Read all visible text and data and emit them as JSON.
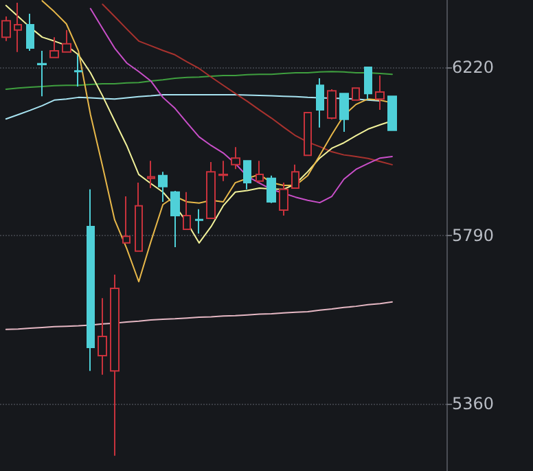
{
  "chart_data": {
    "type": "candlestick",
    "categories": [
      null,
      null,
      null,
      null,
      null,
      null,
      null,
      null,
      null,
      null,
      null,
      null,
      null,
      null,
      null,
      null,
      null,
      null,
      null,
      null,
      null,
      null,
      null,
      null,
      null,
      null,
      null,
      null,
      null,
      null,
      null,
      null,
      null,
      null,
      null,
      null,
      null
    ],
    "ohlc": [
      [
        6297,
        6350,
        6287,
        6339
      ],
      [
        6315,
        6385,
        6259,
        6329
      ],
      [
        6329,
        6357,
        6262,
        6269
      ],
      [
        6229,
        6262,
        6146,
        6227
      ],
      [
        6245,
        6297,
        6245,
        6262
      ],
      [
        6259,
        6315,
        6259,
        6280
      ],
      [
        6211,
        6252,
        6171,
        6209
      ],
      [
        5813,
        5908,
        5444,
        5504
      ],
      [
        5483,
        5630,
        5434,
        5532
      ],
      [
        5444,
        5690,
        5227,
        5655
      ],
      [
        5771,
        5890,
        5771,
        5788
      ],
      [
        5750,
        5925,
        5750,
        5866
      ],
      [
        5936,
        5981,
        5911,
        5940
      ],
      [
        5943,
        5953,
        5876,
        5915
      ],
      [
        5901,
        5904,
        5760,
        5841
      ],
      [
        5806,
        5901,
        5806,
        5841
      ],
      [
        5831,
        5857,
        5795,
        5829
      ],
      [
        5834,
        5978,
        5834,
        5953
      ],
      [
        5944,
        5981,
        5929,
        5946
      ],
      [
        5971,
        6016,
        5960,
        5988
      ],
      [
        5981,
        5981,
        5908,
        5925
      ],
      [
        5929,
        5981,
        5925,
        5946
      ],
      [
        5936,
        5943,
        5873,
        5876
      ],
      [
        5855,
        5925,
        5841,
        5908
      ],
      [
        5911,
        5971,
        5911,
        5953
      ],
      [
        5995,
        6104,
        5995,
        6104
      ],
      [
        6174,
        6192,
        6066,
        6111
      ],
      [
        6090,
        6164,
        6087,
        6160
      ],
      [
        6153,
        6153,
        6055,
        6087
      ],
      [
        6136,
        6167,
        6136,
        6167
      ],
      [
        6220,
        6220,
        6139,
        6153
      ],
      [
        6139,
        6199,
        6111,
        6157
      ],
      [
        6146,
        6146,
        6059,
        6059
      ],
      null,
      null,
      null,
      null
    ],
    "colors": [
      "#c8323c",
      "#c8323c",
      "#4fd0d8",
      "#4fd0d8",
      "#c8323c",
      "#c8323c",
      "#4fd0d8",
      "#4fd0d8",
      "#c8323c",
      "#c8323c",
      "#c8323c",
      "#c8323c",
      "#c8323c",
      "#4fd0d8",
      "#4fd0d8",
      "#c8323c",
      "#4fd0d8",
      "#c8323c",
      "#c8323c",
      "#c8323c",
      "#4fd0d8",
      "#c8323c",
      "#4fd0d8",
      "#c8323c",
      "#c8323c",
      "#c8323c",
      "#4fd0d8",
      "#c8323c",
      "#4fd0d8",
      "#c8323c",
      "#4fd0d8",
      "#c8323c",
      "#4fd0d8",
      null,
      null,
      null,
      null
    ],
    "series": [
      {
        "type": "line",
        "color": "#e8b84a",
        "values": [
          null,
          null,
          null,
          6390,
          6362,
          6331,
          6262,
          6099,
          5967,
          5830,
          5757,
          5672,
          5774,
          5869,
          5890,
          5876,
          5873,
          5880,
          5876,
          5925,
          5936,
          5946,
          5925,
          5918,
          5918,
          5943,
          5995,
          6048,
          6097,
          6125,
          6139,
          6136,
          6129,
          null,
          null,
          null,
          null
        ]
      },
      {
        "type": "line",
        "color": "#f2f29a",
        "values": [
          6378,
          6350,
          6322,
          6297,
          6287,
          6276,
          6252,
          6206,
          6147,
          6083,
          6020,
          5946,
          5923,
          5901,
          5866,
          5823,
          5771,
          5813,
          5866,
          5901,
          5905,
          5911,
          5909,
          5908,
          5922,
          5953,
          5988,
          6013,
          6027,
          6045,
          6062,
          6073,
          6083,
          null,
          null,
          null,
          null
        ]
      },
      {
        "type": "line",
        "color": "#c94fc9",
        "values": [
          null,
          null,
          null,
          null,
          null,
          null,
          null,
          6370,
          6319,
          6269,
          6231,
          6209,
          6185,
          6143,
          6115,
          6078,
          6042,
          6020,
          6001,
          5974,
          5941,
          5924,
          5908,
          5898,
          5888,
          5880,
          5874,
          5890,
          5934,
          5959,
          5974,
          5988,
          5992,
          null,
          null,
          null,
          null
        ]
      },
      {
        "type": "line",
        "color": "#a8322e",
        "values": [
          null,
          null,
          null,
          null,
          null,
          null,
          null,
          null,
          6381,
          6350,
          6318,
          6287,
          6275,
          6263,
          6252,
          6234,
          6217,
          6195,
          6174,
          6153,
          6133,
          6111,
          6090,
          6067,
          6045,
          6029,
          6017,
          6004,
          5996,
          5992,
          5987,
          5979,
          5971,
          null,
          null,
          null,
          null
        ]
      },
      {
        "type": "line",
        "color": "#3f9f3f",
        "values": [
          6164,
          6167,
          6169,
          6171,
          6173,
          6174,
          6174,
          6176,
          6178,
          6178,
          6180,
          6181,
          6185,
          6188,
          6192,
          6194,
          6195,
          6197,
          6199,
          6199,
          6201,
          6202,
          6202,
          6204,
          6206,
          6206,
          6208,
          6209,
          6208,
          6206,
          6206,
          6204,
          6202,
          null,
          null,
          null,
          null
        ]
      },
      {
        "type": "line",
        "color": "#a8e4f2",
        "values": [
          6088,
          6099,
          6110,
          6122,
          6136,
          6139,
          6143,
          6142,
          6140,
          6139,
          6142,
          6145,
          6147,
          6150,
          6150,
          6150,
          6150,
          6150,
          6150,
          6150,
          6149,
          6148,
          6147,
          6146,
          6145,
          6143,
          6142,
          6141,
          6140,
          6139,
          6136,
          6134,
          null,
          null,
          null,
          null,
          null
        ]
      },
      {
        "type": "line",
        "color": "#e6b8c4",
        "values": [
          5550,
          5551,
          5553,
          5555,
          5557,
          5558,
          5559,
          5561,
          5564,
          5566,
          5569,
          5571,
          5574,
          5576,
          5577,
          5579,
          5581,
          5582,
          5584,
          5585,
          5587,
          5589,
          5590,
          5592,
          5594,
          5595,
          5599,
          5602,
          5606,
          5609,
          5613,
          5616,
          5620,
          null,
          null,
          null,
          null
        ]
      }
    ],
    "ylim": [
      5188,
      6392
    ],
    "yticks": [
      5360,
      5790,
      6220
    ],
    "grid": "y",
    "tick_labels": "y",
    "line_style": "solid"
  }
}
